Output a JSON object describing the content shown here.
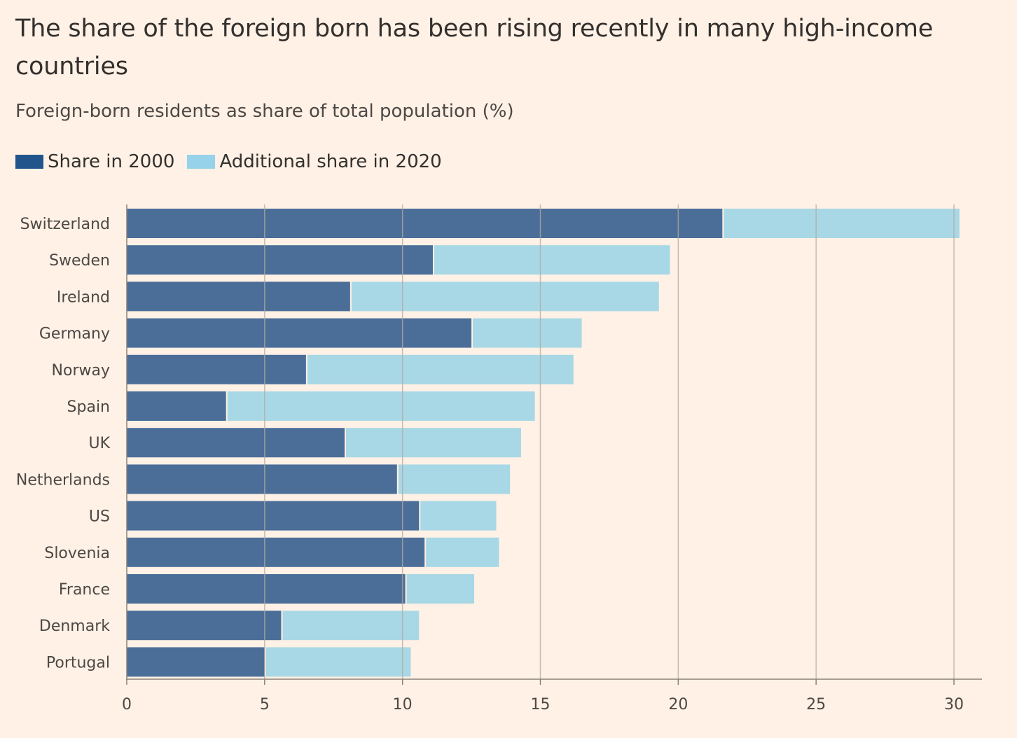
{
  "title": "The share of the foreign born has been rising recently in many high-income countries",
  "subtitle": "Foreign-born residents as share of total population (%)",
  "colors": {
    "background": "#fff1e5",
    "share2000": "#4b6e99",
    "additional2020": "#a8d8e6",
    "legend2000": "#20548a",
    "legend2020": "#96d3ea",
    "grid": "#b3a89e"
  },
  "chart_data": {
    "type": "bar",
    "orientation": "horizontal",
    "stacked": true,
    "categories": [
      "Switzerland",
      "Sweden",
      "Ireland",
      "Germany",
      "Norway",
      "Spain",
      "UK",
      "Netherlands",
      "US",
      "Slovenia",
      "France",
      "Denmark",
      "Portugal"
    ],
    "series": [
      {
        "name": "Share in 2000",
        "values": [
          21.6,
          11.1,
          8.1,
          12.5,
          6.5,
          3.6,
          7.9,
          9.8,
          10.6,
          10.8,
          10.1,
          5.6,
          5.0
        ]
      },
      {
        "name": "Additional share in 2020",
        "values": [
          8.6,
          8.6,
          11.2,
          4.0,
          9.7,
          11.2,
          6.4,
          4.1,
          2.8,
          2.7,
          2.5,
          5.0,
          5.3
        ]
      }
    ],
    "xlim": [
      0,
      31
    ],
    "xticks": [
      0,
      5,
      10,
      15,
      20,
      25,
      30
    ],
    "grid": true,
    "legend_position": "top-left"
  }
}
